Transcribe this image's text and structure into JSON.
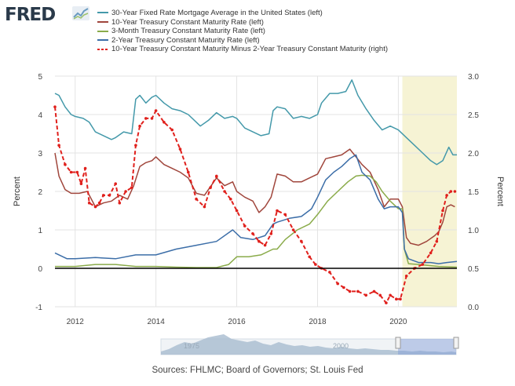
{
  "header": {
    "logo_text": "FRED",
    "logo_icon": "line-chart-icon"
  },
  "legend": {
    "items": [
      {
        "label": "30-Year Fixed Rate Mortgage Average in the United States (left)",
        "color": "#4499aa",
        "dashed": false
      },
      {
        "label": "10-Year Treasury Constant Maturity Rate (left)",
        "color": "#a0463c",
        "dashed": false
      },
      {
        "label": "3-Month Treasury Constant Maturity Rate (left)",
        "color": "#8aab4a",
        "dashed": false
      },
      {
        "label": "2-Year Treasury Constant Maturity Rate (left)",
        "color": "#3c6ea8",
        "dashed": false
      },
      {
        "label": "10-Year Treasury Constant Maturity Minus 2-Year Treasury Constant Maturity (right)",
        "color": "#e0201c",
        "dashed": true
      }
    ]
  },
  "source": "Sources: FHLMC; Board of Governors; St. Louis Fed",
  "navigator": {
    "labels": [
      "1975",
      "2000"
    ]
  },
  "chart_data": {
    "type": "line",
    "ylabel_left": "Percent",
    "ylabel_right": "Percent",
    "xlim": [
      2011.5,
      2021.45
    ],
    "ylim_left": [
      -1,
      5
    ],
    "ylim_right": [
      0.0,
      3.0
    ],
    "x_ticks": [
      "2012",
      "2014",
      "2016",
      "2018",
      "2020"
    ],
    "y_ticks_left": [
      "-1",
      "0",
      "1",
      "2",
      "3",
      "4",
      "5"
    ],
    "y_ticks_right": [
      "0.0",
      "0.5",
      "1.0",
      "1.5",
      "2.0",
      "2.5",
      "3.0"
    ],
    "grid": true,
    "recession_shading": [
      2020.1,
      2021.45
    ],
    "zero_line_left": 0,
    "series": [
      {
        "name": "30-Year Fixed Rate Mortgage Average in the United States (left)",
        "axis": "left",
        "color": "#4499aa",
        "dashed": false,
        "x": [
          2011.5,
          2011.6,
          2011.75,
          2011.9,
          2012.0,
          2012.2,
          2012.35,
          2012.5,
          2012.7,
          2012.9,
          2013.0,
          2013.2,
          2013.4,
          2013.5,
          2013.6,
          2013.75,
          2013.9,
          2014.0,
          2014.2,
          2014.4,
          2014.6,
          2014.8,
          2015.0,
          2015.1,
          2015.3,
          2015.5,
          2015.7,
          2015.9,
          2016.0,
          2016.2,
          2016.4,
          2016.6,
          2016.8,
          2016.9,
          2017.0,
          2017.2,
          2017.4,
          2017.6,
          2017.8,
          2017.9,
          2018.0,
          2018.1,
          2018.3,
          2018.5,
          2018.7,
          2018.85,
          2019.0,
          2019.2,
          2019.4,
          2019.6,
          2019.8,
          2020.0,
          2020.2,
          2020.4,
          2020.6,
          2020.8,
          2020.95,
          2021.1,
          2021.25,
          2021.35,
          2021.45
        ],
        "y": [
          4.55,
          4.5,
          4.2,
          4.0,
          3.95,
          3.9,
          3.8,
          3.55,
          3.45,
          3.35,
          3.4,
          3.55,
          3.5,
          4.4,
          4.5,
          4.3,
          4.45,
          4.5,
          4.3,
          4.15,
          4.1,
          4.0,
          3.8,
          3.7,
          3.85,
          4.05,
          3.9,
          3.95,
          3.9,
          3.65,
          3.55,
          3.45,
          3.5,
          4.1,
          4.2,
          4.15,
          3.9,
          3.95,
          3.9,
          3.95,
          4.0,
          4.3,
          4.55,
          4.55,
          4.6,
          4.9,
          4.5,
          4.15,
          3.85,
          3.6,
          3.7,
          3.6,
          3.4,
          3.2,
          3.0,
          2.8,
          2.7,
          2.8,
          3.15,
          2.95,
          2.95
        ]
      },
      {
        "name": "10-Year Treasury Constant Maturity Rate (left)",
        "axis": "left",
        "color": "#a0463c",
        "dashed": false,
        "x": [
          2011.5,
          2011.6,
          2011.75,
          2011.9,
          2012.1,
          2012.3,
          2012.5,
          2012.7,
          2012.9,
          2013.1,
          2013.3,
          2013.45,
          2013.6,
          2013.75,
          2013.9,
          2014.0,
          2014.2,
          2014.4,
          2014.6,
          2014.8,
          2015.0,
          2015.2,
          2015.4,
          2015.5,
          2015.7,
          2015.9,
          2016.0,
          2016.2,
          2016.4,
          2016.55,
          2016.7,
          2016.85,
          2017.0,
          2017.2,
          2017.4,
          2017.6,
          2017.8,
          2018.0,
          2018.2,
          2018.4,
          2018.6,
          2018.8,
          2018.95,
          2019.1,
          2019.3,
          2019.5,
          2019.65,
          2019.8,
          2020.0,
          2020.1,
          2020.2,
          2020.3,
          2020.5,
          2020.7,
          2020.9,
          2021.0,
          2021.1,
          2021.2,
          2021.3,
          2021.4
        ],
        "y": [
          3.0,
          2.4,
          2.05,
          1.95,
          1.95,
          2.0,
          1.6,
          1.7,
          1.75,
          1.9,
          1.8,
          2.15,
          2.65,
          2.75,
          2.8,
          2.9,
          2.7,
          2.6,
          2.5,
          2.35,
          1.95,
          1.9,
          2.2,
          2.35,
          2.15,
          2.25,
          2.0,
          1.85,
          1.75,
          1.45,
          1.6,
          1.85,
          2.45,
          2.4,
          2.25,
          2.25,
          2.35,
          2.45,
          2.85,
          2.9,
          2.95,
          3.1,
          2.9,
          2.7,
          2.5,
          2.05,
          1.6,
          1.8,
          1.8,
          1.6,
          0.8,
          0.65,
          0.6,
          0.7,
          0.85,
          0.95,
          1.2,
          1.6,
          1.65,
          1.6
        ]
      },
      {
        "name": "3-Month Treasury Constant Maturity Rate (left)",
        "axis": "left",
        "color": "#8aab4a",
        "dashed": false,
        "x": [
          2011.5,
          2012.0,
          2012.5,
          2013.0,
          2013.5,
          2014.0,
          2014.5,
          2015.0,
          2015.5,
          2015.8,
          2016.0,
          2016.3,
          2016.6,
          2016.9,
          2017.0,
          2017.2,
          2017.5,
          2017.8,
          2018.0,
          2018.25,
          2018.5,
          2018.75,
          2018.95,
          2019.1,
          2019.3,
          2019.45,
          2019.6,
          2019.8,
          2020.0,
          2020.1,
          2020.15,
          2020.25,
          2020.5,
          2021.0,
          2021.45
        ],
        "y": [
          0.05,
          0.05,
          0.1,
          0.1,
          0.05,
          0.05,
          0.03,
          0.02,
          0.02,
          0.1,
          0.3,
          0.3,
          0.35,
          0.5,
          0.5,
          0.75,
          1.0,
          1.15,
          1.4,
          1.75,
          2.0,
          2.25,
          2.4,
          2.42,
          2.4,
          2.25,
          2.0,
          1.75,
          1.55,
          1.55,
          0.5,
          0.12,
          0.1,
          0.05,
          0.03
        ]
      },
      {
        "name": "2-Year Treasury Constant Maturity Rate (left)",
        "axis": "left",
        "color": "#3c6ea8",
        "dashed": false,
        "x": [
          2011.5,
          2011.8,
          2012.0,
          2012.5,
          2013.0,
          2013.5,
          2014.0,
          2014.5,
          2015.0,
          2015.5,
          2015.9,
          2016.1,
          2016.4,
          2016.7,
          2016.9,
          2017.0,
          2017.3,
          2017.6,
          2017.85,
          2018.0,
          2018.2,
          2018.4,
          2018.6,
          2018.8,
          2018.95,
          2019.1,
          2019.3,
          2019.5,
          2019.65,
          2019.8,
          2020.0,
          2020.1,
          2020.15,
          2020.25,
          2020.5,
          2020.8,
          2021.0,
          2021.2,
          2021.45
        ],
        "y": [
          0.4,
          0.25,
          0.25,
          0.28,
          0.25,
          0.35,
          0.35,
          0.5,
          0.6,
          0.7,
          1.0,
          0.8,
          0.75,
          0.85,
          1.15,
          1.2,
          1.3,
          1.35,
          1.55,
          1.85,
          2.3,
          2.5,
          2.65,
          2.85,
          2.95,
          2.5,
          2.3,
          1.8,
          1.55,
          1.6,
          1.6,
          1.45,
          0.5,
          0.25,
          0.15,
          0.15,
          0.12,
          0.15,
          0.18
        ]
      },
      {
        "name": "10-Year Treasury Constant Maturity Minus 2-Year Treasury Constant Maturity (right)",
        "axis": "right",
        "color": "#e0201c",
        "dashed": true,
        "x": [
          2011.5,
          2011.6,
          2011.75,
          2011.9,
          2012.05,
          2012.15,
          2012.25,
          2012.35,
          2012.5,
          2012.6,
          2012.7,
          2012.85,
          2013.0,
          2013.1,
          2013.25,
          2013.4,
          2013.5,
          2013.6,
          2013.75,
          2013.9,
          2014.0,
          2014.2,
          2014.4,
          2014.6,
          2014.8,
          2015.0,
          2015.2,
          2015.35,
          2015.5,
          2015.7,
          2015.85,
          2016.0,
          2016.2,
          2016.4,
          2016.55,
          2016.7,
          2016.85,
          2017.0,
          2017.2,
          2017.4,
          2017.6,
          2017.8,
          2017.95,
          2018.1,
          2018.3,
          2018.5,
          2018.65,
          2018.8,
          2019.0,
          2019.2,
          2019.4,
          2019.55,
          2019.7,
          2019.8,
          2019.95,
          2020.05,
          2020.2,
          2020.4,
          2020.6,
          2020.8,
          2020.95,
          2021.1,
          2021.2,
          2021.3,
          2021.4
        ],
        "y": [
          2.6,
          2.1,
          1.85,
          1.75,
          1.75,
          1.6,
          1.8,
          1.35,
          1.3,
          1.35,
          1.45,
          1.45,
          1.6,
          1.35,
          1.5,
          1.55,
          2.1,
          2.35,
          2.45,
          2.45,
          2.55,
          2.4,
          2.3,
          2.05,
          1.75,
          1.4,
          1.3,
          1.55,
          1.7,
          1.5,
          1.4,
          1.25,
          1.05,
          0.95,
          0.85,
          0.8,
          0.95,
          1.25,
          1.2,
          1.0,
          0.85,
          0.65,
          0.55,
          0.5,
          0.45,
          0.3,
          0.25,
          0.2,
          0.2,
          0.15,
          0.2,
          0.15,
          0.05,
          0.15,
          0.1,
          0.1,
          0.4,
          0.5,
          0.55,
          0.7,
          0.85,
          1.25,
          1.45,
          1.5,
          1.5
        ]
      }
    ]
  }
}
